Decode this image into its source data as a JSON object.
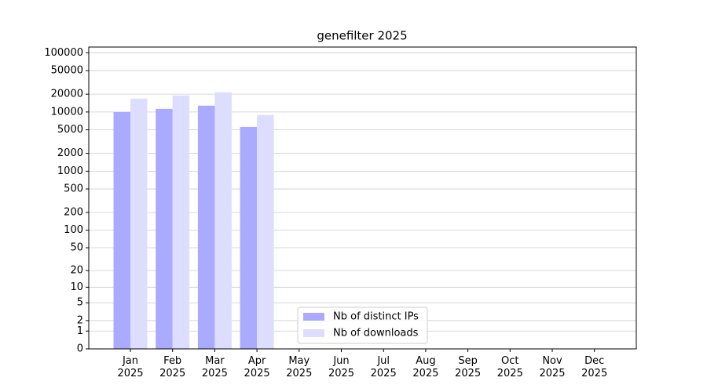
{
  "chart_data": {
    "type": "bar",
    "title": "genefilter 2025",
    "categories": [
      "Jan\n2025",
      "Feb\n2025",
      "Mar\n2025",
      "Apr\n2025",
      "May\n2025",
      "Jun\n2025",
      "Jul\n2025",
      "Aug\n2025",
      "Sep\n2025",
      "Oct\n2025",
      "Nov\n2025",
      "Dec\n2025"
    ],
    "series": [
      {
        "name": "Nb of distinct IPs",
        "color": "#aaaaff",
        "values": [
          10000,
          11300,
          12800,
          5600,
          null,
          null,
          null,
          null,
          null,
          null,
          null,
          null
        ]
      },
      {
        "name": "Nb of downloads",
        "color": "#ddddff",
        "values": [
          16800,
          19000,
          21500,
          8900,
          null,
          null,
          null,
          null,
          null,
          null,
          null,
          null
        ]
      }
    ],
    "ylim": [
      0,
      125000
    ],
    "yticks": [
      0,
      1,
      2,
      5,
      10,
      20,
      50,
      100,
      200,
      500,
      1000,
      2000,
      5000,
      10000,
      20000,
      50000,
      100000
    ],
    "log_scale": "symlog",
    "grid": true,
    "legend": "lower center"
  }
}
